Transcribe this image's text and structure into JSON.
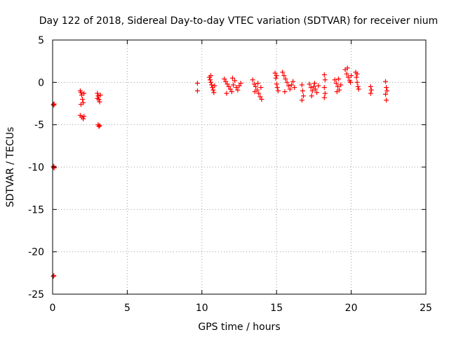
{
  "chart_data": {
    "type": "scatter",
    "title": "Day 122 of 2018, Sidereal Day-to-day VTEC variation (SDTVAR) for receiver nium",
    "xlabel": "GPS time / hours",
    "ylabel": "SDTVAR / TECUs",
    "xlim": [
      0,
      25
    ],
    "ylim": [
      -25,
      5
    ],
    "xticks": [
      0,
      5,
      10,
      15,
      20,
      25
    ],
    "yticks": [
      -25,
      -20,
      -15,
      -10,
      -5,
      0,
      5
    ],
    "grid": true,
    "marker": "plus",
    "color": "#ff0000",
    "series": [
      {
        "name": "SDTVAR",
        "points": [
          [
            0.05,
            -2.6
          ],
          [
            0.08,
            -2.7
          ],
          [
            0.1,
            -2.55
          ],
          [
            0.05,
            -10.0
          ],
          [
            0.08,
            -9.9
          ],
          [
            0.1,
            -10.1
          ],
          [
            0.05,
            -22.9
          ],
          [
            0.08,
            -22.8
          ],
          [
            1.85,
            -1.0
          ],
          [
            1.9,
            -1.2
          ],
          [
            1.95,
            -1.5
          ],
          [
            2.0,
            -2.0
          ],
          [
            2.05,
            -2.4
          ],
          [
            1.9,
            -2.6
          ],
          [
            2.1,
            -1.3
          ],
          [
            1.85,
            -3.9
          ],
          [
            1.95,
            -4.1
          ],
          [
            2.05,
            -4.3
          ],
          [
            2.1,
            -4.0
          ],
          [
            3.0,
            -1.3
          ],
          [
            3.05,
            -1.6
          ],
          [
            3.1,
            -2.0
          ],
          [
            3.15,
            -2.3
          ],
          [
            3.2,
            -1.5
          ],
          [
            3.0,
            -1.9
          ],
          [
            3.05,
            -5.0
          ],
          [
            3.1,
            -5.2
          ],
          [
            3.15,
            -5.1
          ],
          [
            9.7,
            -0.1
          ],
          [
            9.7,
            -1.0
          ],
          [
            10.5,
            0.6
          ],
          [
            10.55,
            0.3
          ],
          [
            10.6,
            0.0
          ],
          [
            10.65,
            -0.3
          ],
          [
            10.7,
            -0.6
          ],
          [
            10.75,
            -0.9
          ],
          [
            10.8,
            -1.2
          ],
          [
            10.85,
            -0.4
          ],
          [
            10.6,
            0.8
          ],
          [
            11.5,
            0.4
          ],
          [
            11.6,
            0.1
          ],
          [
            11.7,
            -0.2
          ],
          [
            11.8,
            -0.5
          ],
          [
            11.9,
            -0.8
          ],
          [
            12.0,
            -1.1
          ],
          [
            12.1,
            -0.3
          ],
          [
            12.2,
            0.2
          ],
          [
            12.3,
            -0.6
          ],
          [
            12.4,
            -0.9
          ],
          [
            12.5,
            -0.4
          ],
          [
            12.6,
            -0.1
          ],
          [
            11.65,
            -1.3
          ],
          [
            12.05,
            0.5
          ],
          [
            13.4,
            0.3
          ],
          [
            13.5,
            -0.2
          ],
          [
            13.6,
            -0.5
          ],
          [
            13.7,
            -0.9
          ],
          [
            13.8,
            -1.3
          ],
          [
            13.9,
            -1.7
          ],
          [
            14.0,
            -2.0
          ],
          [
            13.55,
            -1.1
          ],
          [
            13.75,
            -0.1
          ],
          [
            13.95,
            -0.6
          ],
          [
            14.9,
            1.1
          ],
          [
            14.95,
            0.5
          ],
          [
            15.0,
            -0.2
          ],
          [
            15.05,
            -0.6
          ],
          [
            15.1,
            -1.0
          ],
          [
            15.0,
            0.8
          ],
          [
            15.4,
            1.2
          ],
          [
            15.5,
            0.8
          ],
          [
            15.6,
            0.4
          ],
          [
            15.7,
            0.0
          ],
          [
            15.8,
            -0.4
          ],
          [
            15.9,
            -0.8
          ],
          [
            16.0,
            -0.3
          ],
          [
            16.1,
            0.1
          ],
          [
            16.2,
            -0.6
          ],
          [
            15.55,
            -1.1
          ],
          [
            16.7,
            -0.3
          ],
          [
            16.75,
            -1.0
          ],
          [
            16.8,
            -1.6
          ],
          [
            16.7,
            -2.1
          ],
          [
            17.2,
            -0.2
          ],
          [
            17.3,
            -0.6
          ],
          [
            17.4,
            -1.0
          ],
          [
            17.5,
            -0.5
          ],
          [
            17.6,
            -0.8
          ],
          [
            17.7,
            -1.2
          ],
          [
            17.8,
            -0.4
          ],
          [
            17.35,
            -1.6
          ],
          [
            17.55,
            -0.1
          ],
          [
            18.2,
            0.9
          ],
          [
            18.25,
            0.3
          ],
          [
            18.2,
            -0.6
          ],
          [
            18.25,
            -1.3
          ],
          [
            18.2,
            -1.8
          ],
          [
            18.9,
            0.3
          ],
          [
            19.0,
            -0.1
          ],
          [
            19.1,
            -0.5
          ],
          [
            19.2,
            -0.9
          ],
          [
            19.3,
            -0.3
          ],
          [
            19.05,
            -1.1
          ],
          [
            19.15,
            0.4
          ],
          [
            19.6,
            1.5
          ],
          [
            19.7,
            1.0
          ],
          [
            19.8,
            0.6
          ],
          [
            19.9,
            0.2
          ],
          [
            20.0,
            0.8
          ],
          [
            19.75,
            1.7
          ],
          [
            19.95,
            0.0
          ],
          [
            20.3,
            1.2
          ],
          [
            20.35,
            0.6
          ],
          [
            20.4,
            0.0
          ],
          [
            20.45,
            -0.5
          ],
          [
            20.5,
            -0.8
          ],
          [
            20.4,
            1.0
          ],
          [
            21.3,
            -0.5
          ],
          [
            21.35,
            -0.9
          ],
          [
            21.3,
            -1.3
          ],
          [
            22.3,
            0.1
          ],
          [
            22.35,
            -0.6
          ],
          [
            22.4,
            -1.0
          ],
          [
            22.3,
            -1.4
          ],
          [
            22.35,
            -2.1
          ]
        ]
      }
    ]
  }
}
